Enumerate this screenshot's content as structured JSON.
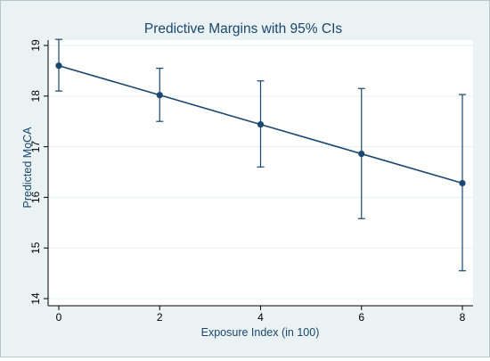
{
  "chart_data": {
    "type": "line",
    "title": "Predictive Margins with 95% CIs",
    "xlabel": "Exposure Index (in 100)",
    "ylabel": "Predicted MoCA",
    "xlim": [
      0,
      8
    ],
    "ylim": [
      14,
      19
    ],
    "x_ticks": [
      "0",
      "2",
      "4",
      "6",
      "8"
    ],
    "y_ticks": [
      "14",
      "15",
      "16",
      "17",
      "18",
      "19"
    ],
    "grid": "horizontal",
    "series": [
      {
        "x": [
          0,
          2,
          4,
          6,
          8
        ],
        "y": [
          18.6,
          18.02,
          17.44,
          16.86,
          16.28
        ],
        "ci_low": [
          18.1,
          17.5,
          16.6,
          15.58,
          14.55
        ],
        "ci_high": [
          19.12,
          18.55,
          18.3,
          18.15,
          18.03
        ]
      }
    ],
    "colors": {
      "line": "#1a476f",
      "outer_background": "#eaf2f3",
      "plot_background": "#ffffff",
      "grid": "#eaf2f3",
      "text": "#1a476f",
      "axis": "#000000"
    }
  }
}
